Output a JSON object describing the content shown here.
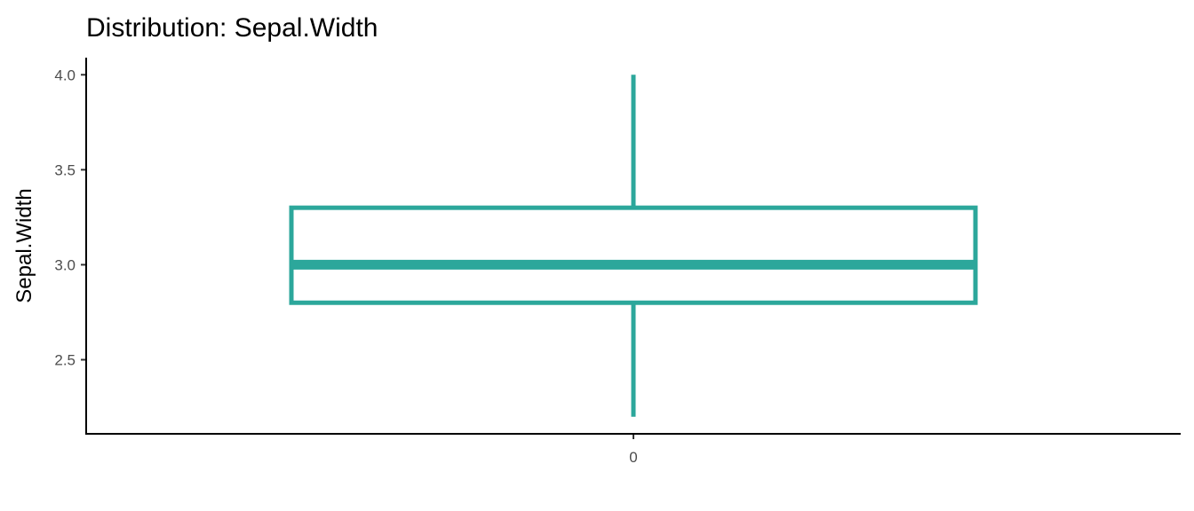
{
  "chart_data": {
    "type": "boxplot",
    "title": "Distribution: Sepal.Width",
    "xlabel": "",
    "ylabel": "Sepal.Width",
    "categories": [
      "0"
    ],
    "boxes": [
      {
        "category": "0",
        "whisker_low": 2.2,
        "q1": 2.8,
        "median": 3.0,
        "q3": 3.3,
        "whisker_high": 4.0
      }
    ],
    "yticks": [
      2.5,
      3.0,
      3.5,
      4.0
    ],
    "ytick_labels": [
      "2.5",
      "3.0",
      "3.5",
      "4.0"
    ],
    "ylim": [
      2.11,
      4.09
    ],
    "grid": false,
    "color": "#2ca79b"
  }
}
